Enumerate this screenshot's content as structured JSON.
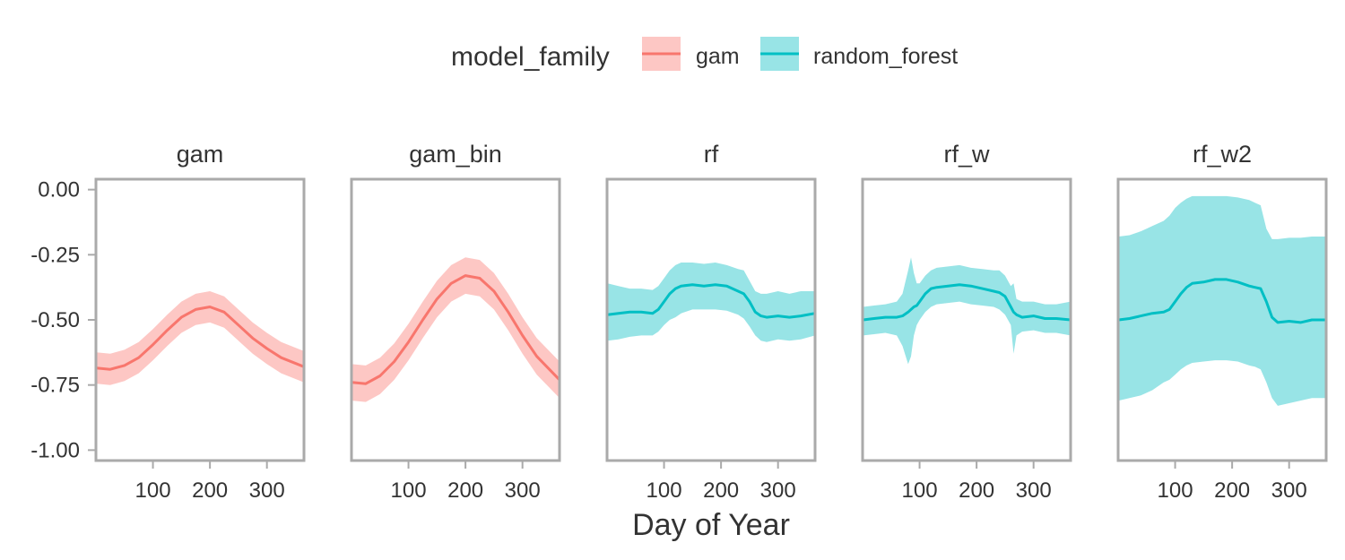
{
  "chart_data": {
    "type": "line",
    "title": "",
    "xlabel": "Day of Year",
    "ylabel": "",
    "xlim": [
      0,
      365
    ],
    "ylim": [
      -1.04,
      0.04
    ],
    "x_ticks": [
      100,
      200,
      300
    ],
    "y_ticks": [
      0.0,
      -0.25,
      -0.5,
      -0.75,
      -1.0
    ],
    "y_tick_labels": [
      "0.00",
      "-0.25",
      "-0.50",
      "-0.75",
      "-1.00"
    ],
    "grid": false,
    "legend": {
      "title": "model_family",
      "placement": "top",
      "entries": [
        {
          "label": "gam",
          "line_color": "#F8766D",
          "fill_color": "#FDC7C4"
        },
        {
          "label": "random_forest",
          "line_color": "#00BFC4",
          "fill_color": "#98E4E6"
        }
      ]
    },
    "panels": [
      {
        "label": "gam",
        "family": "gam",
        "x": [
          1,
          25,
          50,
          75,
          100,
          125,
          150,
          175,
          200,
          225,
          250,
          275,
          300,
          325,
          365
        ],
        "y": [
          -0.685,
          -0.69,
          -0.675,
          -0.645,
          -0.595,
          -0.54,
          -0.49,
          -0.46,
          -0.45,
          -0.47,
          -0.52,
          -0.57,
          -0.61,
          -0.645,
          -0.68
        ],
        "lower": [
          -0.745,
          -0.75,
          -0.735,
          -0.705,
          -0.655,
          -0.6,
          -0.55,
          -0.52,
          -0.51,
          -0.53,
          -0.58,
          -0.63,
          -0.67,
          -0.705,
          -0.74
        ],
        "upper": [
          -0.625,
          -0.63,
          -0.615,
          -0.585,
          -0.535,
          -0.48,
          -0.43,
          -0.4,
          -0.39,
          -0.41,
          -0.46,
          -0.51,
          -0.55,
          -0.585,
          -0.62
        ]
      },
      {
        "label": "gam_bin",
        "family": "gam",
        "x": [
          1,
          25,
          50,
          75,
          100,
          125,
          150,
          175,
          200,
          225,
          250,
          275,
          300,
          325,
          365
        ],
        "y": [
          -0.74,
          -0.745,
          -0.715,
          -0.66,
          -0.585,
          -0.5,
          -0.42,
          -0.36,
          -0.33,
          -0.34,
          -0.39,
          -0.47,
          -0.56,
          -0.64,
          -0.73
        ],
        "lower": [
          -0.81,
          -0.815,
          -0.785,
          -0.73,
          -0.655,
          -0.57,
          -0.49,
          -0.43,
          -0.4,
          -0.41,
          -0.46,
          -0.54,
          -0.63,
          -0.71,
          -0.8
        ],
        "upper": [
          -0.67,
          -0.675,
          -0.645,
          -0.59,
          -0.515,
          -0.43,
          -0.35,
          -0.29,
          -0.26,
          -0.27,
          -0.32,
          -0.4,
          -0.49,
          -0.57,
          -0.66
        ]
      },
      {
        "label": "rf",
        "family": "random_forest",
        "x": [
          1,
          20,
          40,
          60,
          80,
          90,
          100,
          110,
          120,
          130,
          150,
          170,
          190,
          210,
          230,
          240,
          250,
          260,
          270,
          280,
          300,
          320,
          340,
          365
        ],
        "y": [
          -0.48,
          -0.475,
          -0.47,
          -0.47,
          -0.475,
          -0.46,
          -0.43,
          -0.4,
          -0.38,
          -0.37,
          -0.365,
          -0.37,
          -0.365,
          -0.37,
          -0.39,
          -0.4,
          -0.43,
          -0.47,
          -0.485,
          -0.49,
          -0.485,
          -0.49,
          -0.485,
          -0.475
        ],
        "lower": [
          -0.58,
          -0.575,
          -0.565,
          -0.56,
          -0.56,
          -0.545,
          -0.52,
          -0.5,
          -0.49,
          -0.475,
          -0.46,
          -0.46,
          -0.46,
          -0.465,
          -0.48,
          -0.495,
          -0.525,
          -0.56,
          -0.58,
          -0.585,
          -0.575,
          -0.58,
          -0.575,
          -0.56
        ],
        "upper": [
          -0.36,
          -0.37,
          -0.38,
          -0.38,
          -0.385,
          -0.37,
          -0.34,
          -0.31,
          -0.29,
          -0.28,
          -0.28,
          -0.285,
          -0.28,
          -0.29,
          -0.305,
          -0.31,
          -0.35,
          -0.39,
          -0.4,
          -0.4,
          -0.39,
          -0.4,
          -0.39,
          -0.39
        ]
      },
      {
        "label": "rf_w",
        "family": "random_forest",
        "x": [
          1,
          20,
          40,
          60,
          70,
          80,
          85,
          90,
          95,
          100,
          110,
          120,
          130,
          150,
          170,
          190,
          210,
          230,
          240,
          250,
          260,
          265,
          270,
          280,
          300,
          320,
          340,
          365
        ],
        "y": [
          -0.5,
          -0.495,
          -0.49,
          -0.49,
          -0.485,
          -0.47,
          -0.46,
          -0.45,
          -0.445,
          -0.43,
          -0.4,
          -0.38,
          -0.375,
          -0.37,
          -0.365,
          -0.37,
          -0.38,
          -0.39,
          -0.395,
          -0.41,
          -0.45,
          -0.47,
          -0.48,
          -0.49,
          -0.485,
          -0.495,
          -0.495,
          -0.5
        ],
        "lower": [
          -0.56,
          -0.555,
          -0.55,
          -0.56,
          -0.6,
          -0.67,
          -0.64,
          -0.56,
          -0.52,
          -0.5,
          -0.47,
          -0.45,
          -0.44,
          -0.435,
          -0.43,
          -0.44,
          -0.445,
          -0.45,
          -0.46,
          -0.48,
          -0.52,
          -0.63,
          -0.56,
          -0.545,
          -0.54,
          -0.55,
          -0.55,
          -0.56
        ],
        "upper": [
          -0.45,
          -0.445,
          -0.44,
          -0.43,
          -0.4,
          -0.31,
          -0.26,
          -0.32,
          -0.36,
          -0.36,
          -0.33,
          -0.31,
          -0.3,
          -0.295,
          -0.29,
          -0.3,
          -0.305,
          -0.31,
          -0.31,
          -0.33,
          -0.37,
          -0.36,
          -0.42,
          -0.43,
          -0.43,
          -0.44,
          -0.44,
          -0.43
        ]
      },
      {
        "label": "rf_w2",
        "family": "random_forest",
        "x": [
          1,
          20,
          40,
          60,
          80,
          90,
          100,
          110,
          120,
          130,
          150,
          170,
          190,
          210,
          230,
          240,
          250,
          260,
          270,
          280,
          300,
          320,
          340,
          365
        ],
        "y": [
          -0.5,
          -0.495,
          -0.485,
          -0.475,
          -0.47,
          -0.46,
          -0.43,
          -0.4,
          -0.375,
          -0.36,
          -0.355,
          -0.345,
          -0.345,
          -0.355,
          -0.37,
          -0.375,
          -0.38,
          -0.43,
          -0.49,
          -0.51,
          -0.505,
          -0.51,
          -0.5,
          -0.5
        ],
        "lower": [
          -0.81,
          -0.8,
          -0.79,
          -0.77,
          -0.74,
          -0.73,
          -0.71,
          -0.69,
          -0.675,
          -0.665,
          -0.66,
          -0.655,
          -0.655,
          -0.66,
          -0.675,
          -0.68,
          -0.69,
          -0.74,
          -0.8,
          -0.83,
          -0.82,
          -0.81,
          -0.8,
          -0.8
        ],
        "upper": [
          -0.18,
          -0.175,
          -0.16,
          -0.14,
          -0.12,
          -0.1,
          -0.07,
          -0.05,
          -0.035,
          -0.025,
          -0.025,
          -0.025,
          -0.025,
          -0.03,
          -0.04,
          -0.05,
          -0.06,
          -0.15,
          -0.19,
          -0.19,
          -0.185,
          -0.185,
          -0.18,
          -0.18
        ]
      }
    ]
  }
}
